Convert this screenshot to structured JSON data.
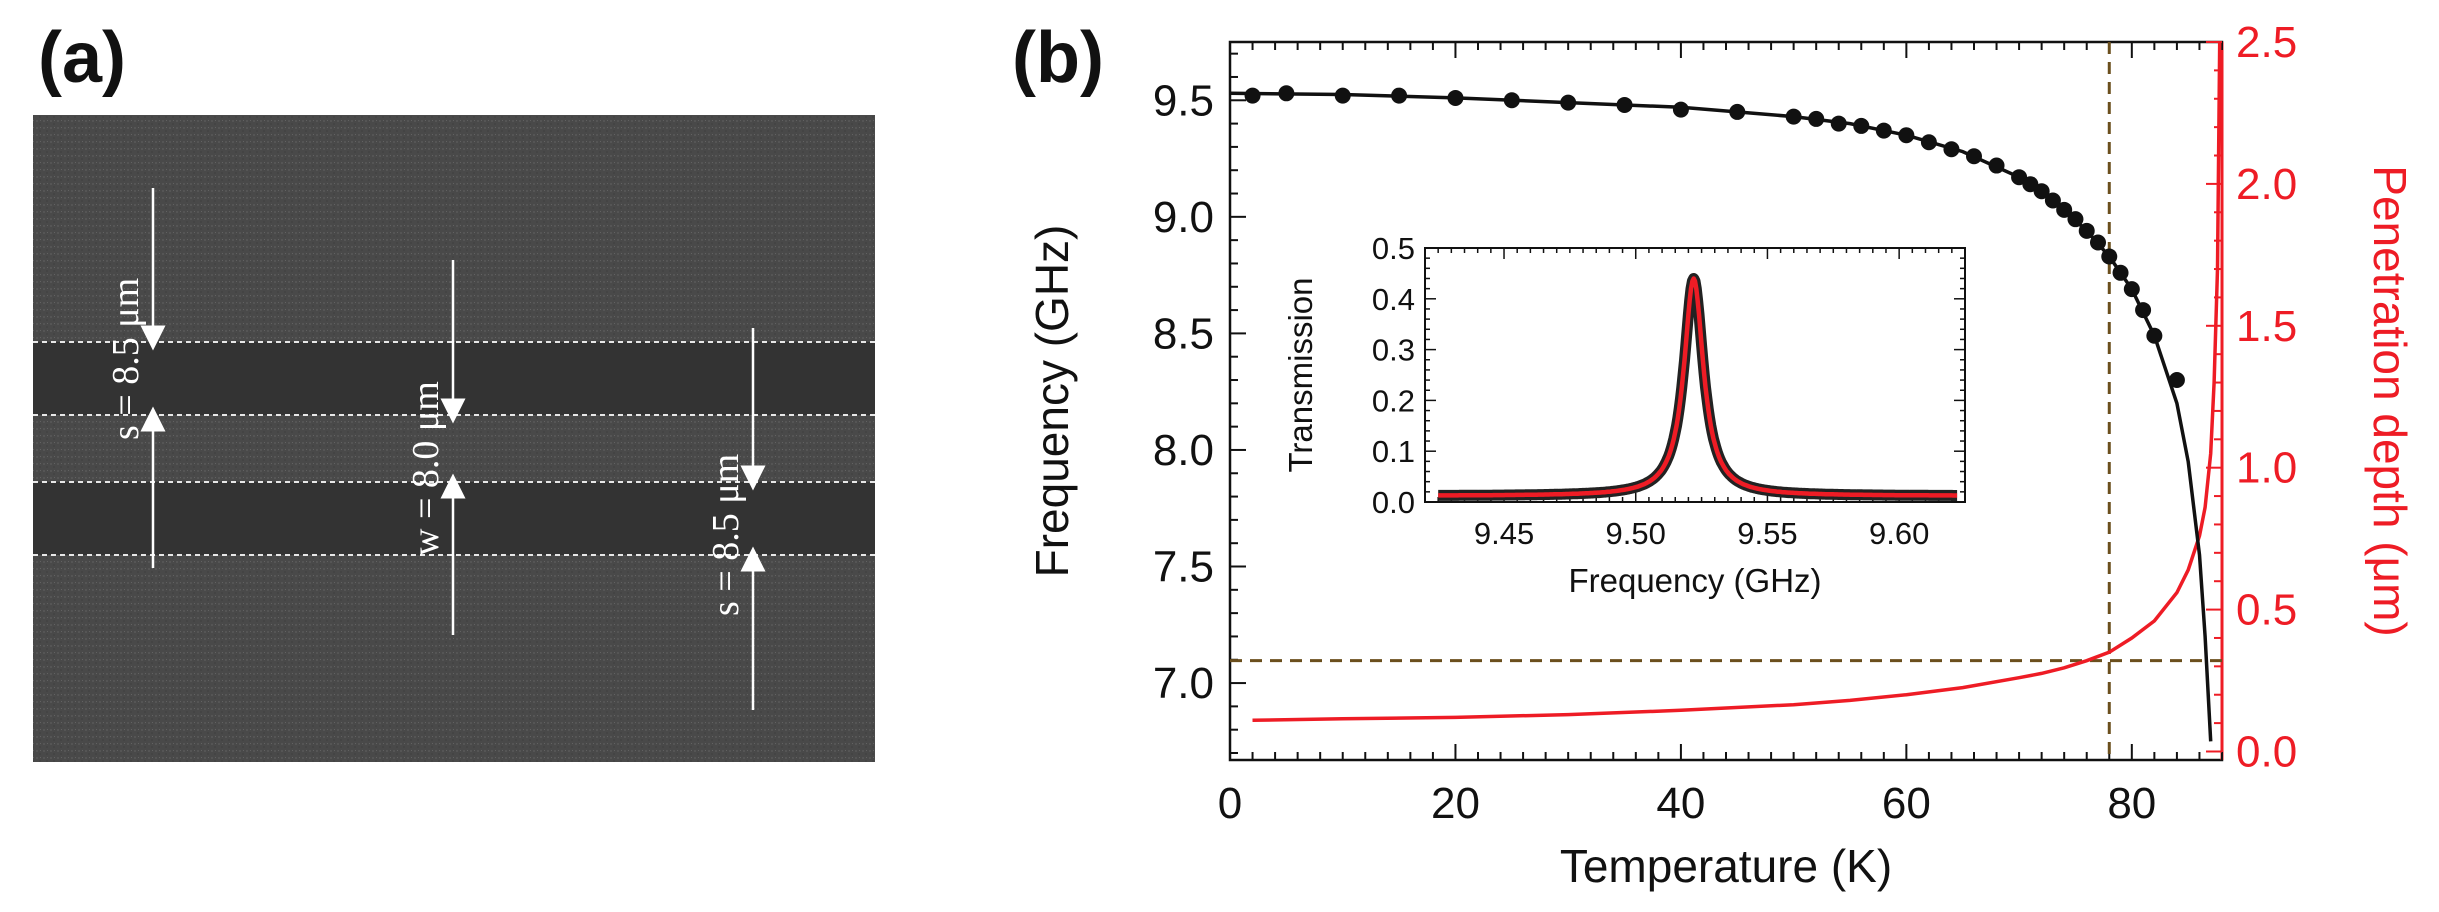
{
  "figure": {
    "panel_a_label": "(a)",
    "panel_b_label": "(b)"
  },
  "sem_image": {
    "labels": [
      {
        "id": "s_top",
        "text": "s = 8.5 μm"
      },
      {
        "id": "w_mid",
        "text": "w = 8.0 μm"
      },
      {
        "id": "s_bottom",
        "text": "s = 8.5 μm"
      }
    ]
  },
  "colors": {
    "frequency_series": "#111111",
    "penetration_series": "#ee1c25",
    "guide_lines": "#6b4f1d",
    "sem_background": "#4a4a4a",
    "sem_gap": "#343434"
  },
  "chart_data": [
    {
      "type": "line",
      "xlabel": "Temperature (K)",
      "ylabel": "Frequency (GHz)",
      "y2label": "Penetration depth (μm)",
      "xlim": [
        0,
        88
      ],
      "ylim": [
        6.67,
        9.75
      ],
      "y2lim": [
        -0.03,
        2.5
      ],
      "xticks": [
        "0",
        "20",
        "40",
        "60",
        "80"
      ],
      "yticks": [
        "7.0",
        "7.5",
        "8.0",
        "8.5",
        "9.0",
        "9.5"
      ],
      "y2ticks": [
        "0.0",
        "0.5",
        "1.0",
        "1.5",
        "2.0",
        "2.5"
      ],
      "guide_lines": {
        "vertical_x": 78,
        "horizontal_y2": 0.32
      },
      "series": [
        {
          "kind": "scatter",
          "axis": "left",
          "x": [
            2,
            5,
            10,
            15,
            20,
            25,
            30,
            35,
            40,
            45,
            50,
            52,
            54,
            56,
            58,
            60,
            62,
            64,
            66,
            68,
            70,
            71,
            72,
            73,
            74,
            75,
            76,
            77,
            78,
            79,
            80,
            81,
            82,
            84
          ],
          "y": [
            9.52,
            9.53,
            9.52,
            9.52,
            9.51,
            9.5,
            9.49,
            9.48,
            9.46,
            9.45,
            9.43,
            9.42,
            9.4,
            9.39,
            9.37,
            9.35,
            9.32,
            9.29,
            9.26,
            9.22,
            9.17,
            9.14,
            9.11,
            9.07,
            9.03,
            8.99,
            8.94,
            8.89,
            8.83,
            8.76,
            8.69,
            8.6,
            8.49,
            8.3
          ]
        },
        {
          "kind": "line",
          "axis": "left",
          "x": [
            0,
            10,
            20,
            30,
            40,
            50,
            55,
            60,
            65,
            70,
            72,
            74,
            76,
            78,
            80,
            82,
            84,
            85,
            86,
            86.5,
            87
          ],
          "y": [
            9.53,
            9.525,
            9.51,
            9.49,
            9.47,
            9.43,
            9.4,
            9.35,
            9.28,
            9.17,
            9.11,
            9.03,
            8.94,
            8.83,
            8.69,
            8.49,
            8.2,
            7.95,
            7.55,
            7.2,
            6.75
          ]
        },
        {
          "kind": "line",
          "axis": "right",
          "x": [
            2,
            10,
            20,
            30,
            40,
            50,
            55,
            60,
            65,
            70,
            72,
            74,
            76,
            78,
            80,
            82,
            84,
            85,
            86,
            86.5,
            87,
            87.3,
            87.6,
            87.8
          ],
          "y": [
            0.11,
            0.115,
            0.12,
            0.13,
            0.145,
            0.165,
            0.18,
            0.2,
            0.225,
            0.26,
            0.275,
            0.295,
            0.32,
            0.35,
            0.4,
            0.46,
            0.56,
            0.64,
            0.76,
            0.86,
            1.05,
            1.3,
            1.7,
            2.5
          ]
        }
      ]
    },
    {
      "type": "line",
      "xlabel": "Frequency (GHz)",
      "ylabel": "Transmission",
      "xlim": [
        9.42,
        9.625
      ],
      "ylim": [
        0,
        0.5
      ],
      "xticks": [
        "9.45",
        "9.50",
        "9.55",
        "9.60"
      ],
      "yticks": [
        "0.0",
        "0.1",
        "0.2",
        "0.3",
        "0.4",
        "0.5"
      ],
      "resonance": {
        "f0": 9.522,
        "peak": 0.44
      },
      "series": [
        {
          "kind": "line",
          "x": [
            9.425,
            9.45,
            9.47,
            9.49,
            9.5,
            9.51,
            9.515,
            9.52,
            9.522,
            9.524,
            9.53,
            9.535,
            9.545,
            9.56,
            9.58,
            9.6,
            9.622
          ],
          "y": [
            0.02,
            0.025,
            0.03,
            0.045,
            0.06,
            0.1,
            0.17,
            0.38,
            0.44,
            0.38,
            0.14,
            0.09,
            0.055,
            0.035,
            0.025,
            0.02,
            0.017
          ]
        }
      ]
    }
  ]
}
